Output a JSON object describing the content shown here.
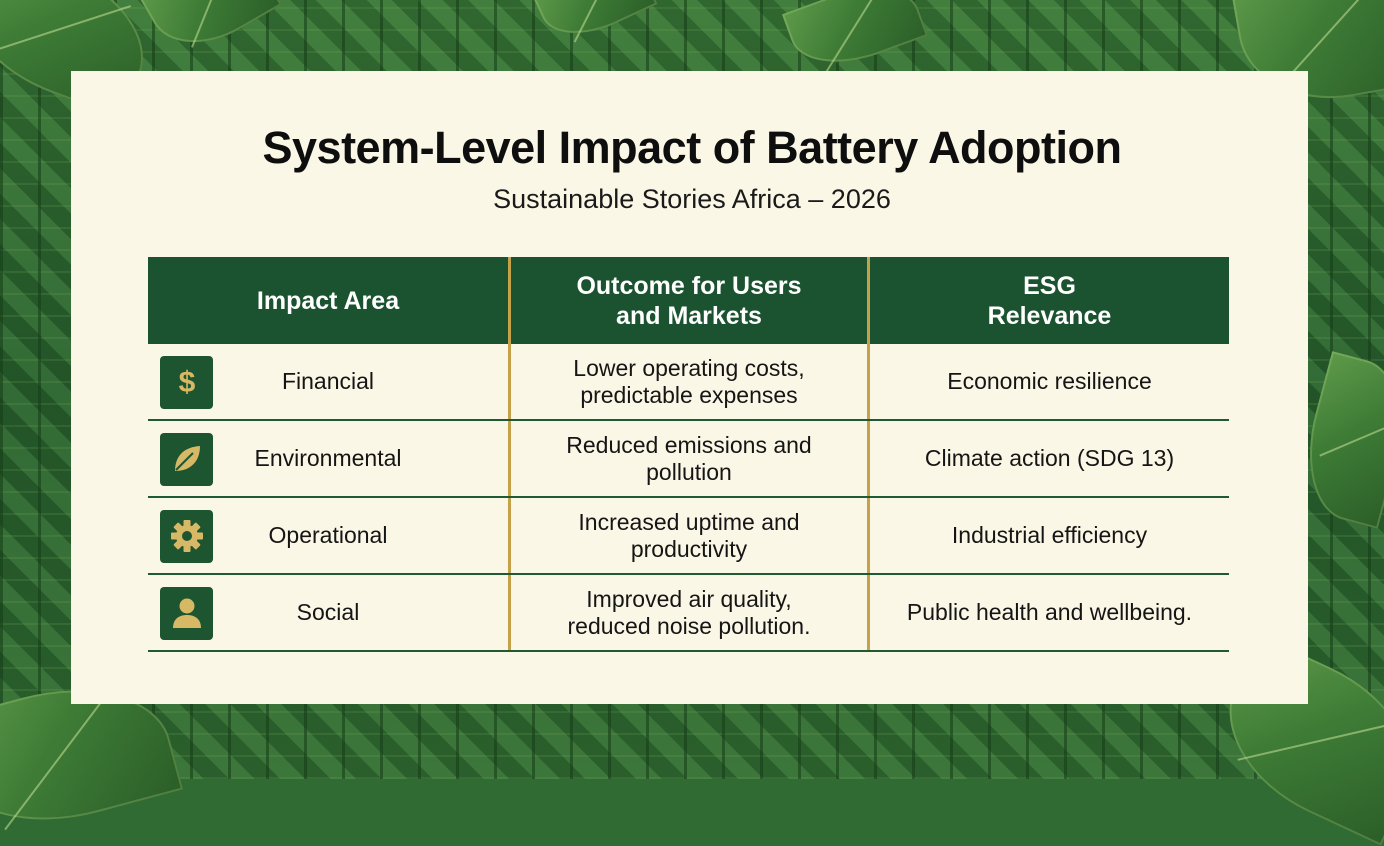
{
  "title": "System-Level Impact of Battery Adoption",
  "subtitle": "Sustainable Stories Africa – 2026",
  "colors": {
    "header_bg": "#1b5330",
    "accent_gold": "#c5a24a",
    "card_bg": "#fbf7e6",
    "icon_bg": "#1c5530",
    "icon_fg": "#d7b865"
  },
  "table": {
    "headers": [
      "Impact Area",
      "Outcome for Users\nand Markets",
      "ESG\nRelevance"
    ],
    "rows": [
      {
        "icon": "dollar-icon",
        "area": "Financial",
        "outcome": "Lower operating costs,\npredictable expenses",
        "esg": "Economic resilience"
      },
      {
        "icon": "leaf-icon",
        "area": "Environmental",
        "outcome": "Reduced emissions and\npollution",
        "esg": "Climate action (SDG 13)"
      },
      {
        "icon": "gear-icon",
        "area": "Operational",
        "outcome": "Increased uptime and\nproductivity",
        "esg": "Industrial efficiency"
      },
      {
        "icon": "person-icon",
        "area": "Social",
        "outcome": "Improved air quality,\nreduced noise pollution.",
        "esg": "Public health and wellbeing."
      }
    ]
  }
}
